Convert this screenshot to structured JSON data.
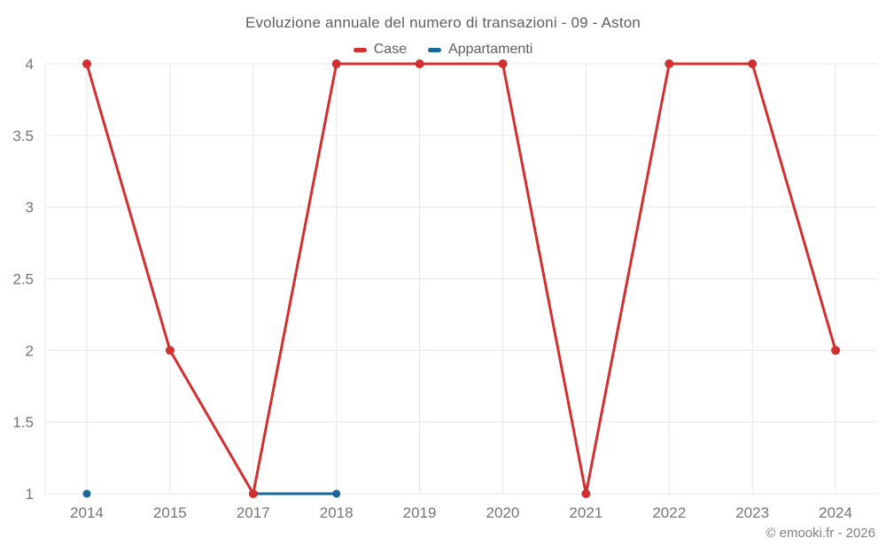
{
  "attribution": "© emooki.fr - 2026",
  "colors": {
    "grid": "#e7e7e7",
    "title_text": "#5f5f5f",
    "tick_text": "#757575",
    "case_red": "#d32f2f",
    "appartamenti_blue": "#17699e"
  },
  "chart_data": {
    "type": "line",
    "title": "Evoluzione annuale del numero di transazioni - 09 - Aston",
    "xlabel": "",
    "ylabel": "",
    "categories": [
      "2014",
      "2015",
      "2017",
      "2018",
      "2019",
      "2020",
      "2021",
      "2022",
      "2023",
      "2024"
    ],
    "series": [
      {
        "name": "Case",
        "color": "#d32f2f",
        "point_radius": 5,
        "values": [
          4,
          2,
          1,
          4,
          4,
          4,
          1,
          4,
          4,
          2
        ]
      },
      {
        "name": "Appartamenti",
        "color": "#17699e",
        "point_radius": 4.5,
        "values": [
          1,
          null,
          1,
          1,
          null,
          null,
          null,
          null,
          null,
          null
        ]
      }
    ],
    "ylim": [
      1,
      4
    ],
    "yticks": [
      1,
      1.5,
      2,
      2.5,
      3,
      3.5,
      4
    ],
    "grid": true,
    "legend_position": "top"
  }
}
